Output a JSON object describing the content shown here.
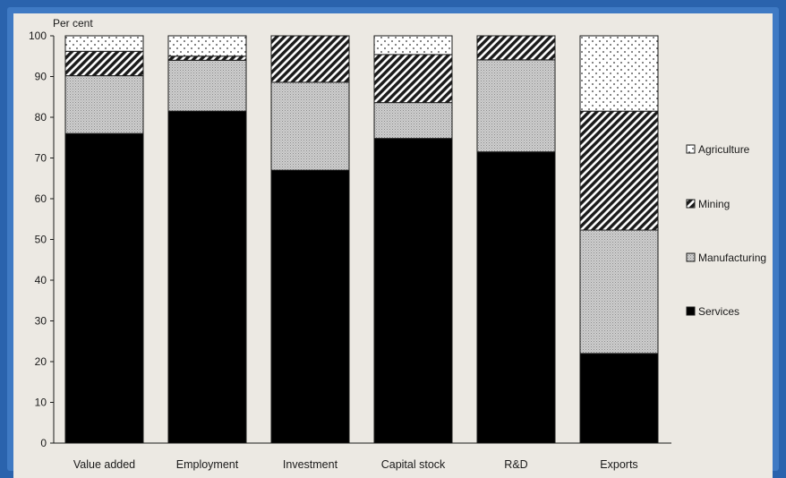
{
  "chart_data": {
    "type": "bar",
    "stacked": true,
    "ylabel": "Per cent",
    "ylim": [
      0,
      100
    ],
    "yticks": [
      0,
      10,
      20,
      30,
      40,
      50,
      60,
      70,
      80,
      90,
      100
    ],
    "categories": [
      "Value added",
      "Employment",
      "Investment",
      "Capital stock",
      "R&D",
      "Exports"
    ],
    "series": [
      {
        "name": "Services",
        "values": [
          76,
          81.5,
          67,
          74.8,
          71.5,
          22
        ]
      },
      {
        "name": "Manufacturing",
        "values": [
          14.2,
          12.5,
          21.6,
          8.8,
          22.6,
          30.3
        ]
      },
      {
        "name": "Mining",
        "values": [
          6,
          1,
          11.4,
          11.8,
          5.9,
          29.2
        ]
      },
      {
        "name": "Agriculture",
        "values": [
          3.8,
          5,
          0,
          4.6,
          0,
          18.5
        ]
      }
    ],
    "legend": {
      "placement": "right",
      "order": [
        "Agriculture",
        "Mining",
        "Manufacturing",
        "Services"
      ]
    },
    "grid": false
  }
}
